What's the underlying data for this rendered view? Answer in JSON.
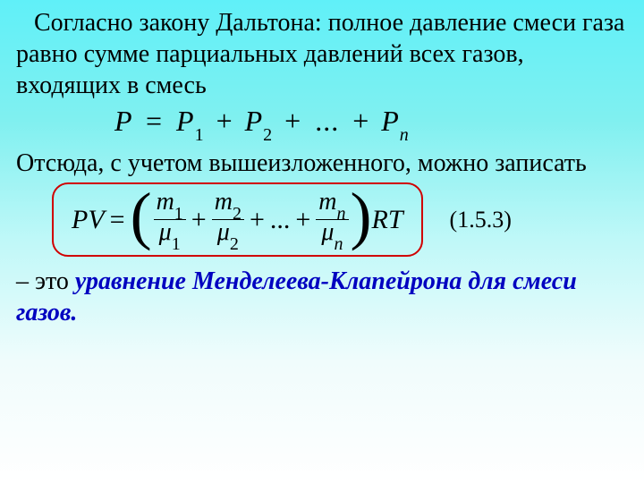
{
  "para1": "Согласно закону Дальтона: полное давление смеси газа равно сумме парциальных давлений всех газов, входящих в смесь",
  "formula1": {
    "lhs": "P",
    "eq": "=",
    "p": "P",
    "s1": "1",
    "s2": "2",
    "sn": "n",
    "plus": "+",
    "dots": "..."
  },
  "para2": "Отсюда, с учетом вышеизложенного, можно записать",
  "formula2": {
    "pv": "PV",
    "eq": "=",
    "m": "m",
    "mu": "μ",
    "s1": "1",
    "s2": "2",
    "sn": "n",
    "plus": "+",
    "dots": "...",
    "rt": "RT"
  },
  "ref": "(1.5.3)",
  "final_pre": " – это ",
  "final_hl": "уравнение Менделеева-Клапейрона для смеси газов."
}
